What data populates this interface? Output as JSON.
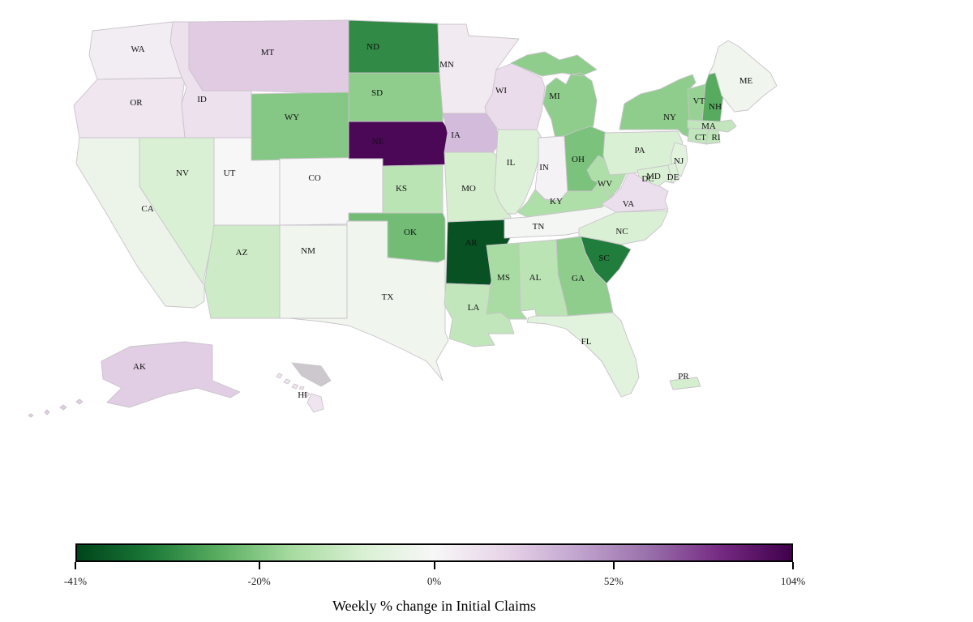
{
  "chart_data": {
    "type": "choropleth",
    "title": "Weekly % change in Initial Claims",
    "unit": "%",
    "colormap": "PRGn_r",
    "colormap_colors": [
      "#00441b",
      "#1b7837",
      "#5aae61",
      "#a6dba0",
      "#d9f0d3",
      "#f7f7f7",
      "#e7d4e8",
      "#c2a5cf",
      "#9970ab",
      "#762a83",
      "#40004b"
    ],
    "norm": {
      "vmin": -41,
      "vcenter": 0,
      "vmax": 104
    },
    "colorbar_ticks": [
      {
        "value": -41,
        "label": "-41%"
      },
      {
        "value": -20,
        "label": "-20%"
      },
      {
        "value": 0,
        "label": "0%"
      },
      {
        "value": 52,
        "label": "52%"
      },
      {
        "value": 104,
        "label": "104%"
      }
    ],
    "legend_position": "bottom",
    "states": [
      {
        "abbr": "WA",
        "value": 6
      },
      {
        "abbr": "OR",
        "value": 10
      },
      {
        "abbr": "CA",
        "value": -3
      },
      {
        "abbr": "ID",
        "value": 13
      },
      {
        "abbr": "NV",
        "value": -8
      },
      {
        "abbr": "UT",
        "value": 0
      },
      {
        "abbr": "AZ",
        "value": -10
      },
      {
        "abbr": "MT",
        "value": 25
      },
      {
        "abbr": "WY",
        "value": -20
      },
      {
        "abbr": "CO",
        "value": 0
      },
      {
        "abbr": "NM",
        "value": -2
      },
      {
        "abbr": "ND",
        "value": -30
      },
      {
        "abbr": "SD",
        "value": -19
      },
      {
        "abbr": "NE",
        "value": 100
      },
      {
        "abbr": "KS",
        "value": -13
      },
      {
        "abbr": "OK",
        "value": -22
      },
      {
        "abbr": "TX",
        "value": -2
      },
      {
        "abbr": "MN",
        "value": 8
      },
      {
        "abbr": "IA",
        "value": 32
      },
      {
        "abbr": "MO",
        "value": -9
      },
      {
        "abbr": "AR",
        "value": -39
      },
      {
        "abbr": "LA",
        "value": -12
      },
      {
        "abbr": "WI",
        "value": 16
      },
      {
        "abbr": "IL",
        "value": -7
      },
      {
        "abbr": "MS",
        "value": -16
      },
      {
        "abbr": "MI",
        "value": -19
      },
      {
        "abbr": "IN",
        "value": 3
      },
      {
        "abbr": "OH",
        "value": -21
      },
      {
        "abbr": "KY",
        "value": -15
      },
      {
        "abbr": "TN",
        "value": -1
      },
      {
        "abbr": "WV",
        "value": -15
      },
      {
        "abbr": "VA",
        "value": 14
      },
      {
        "abbr": "NC",
        "value": -8
      },
      {
        "abbr": "SC",
        "value": -32
      },
      {
        "abbr": "GA",
        "value": -19
      },
      {
        "abbr": "AL",
        "value": -13
      },
      {
        "abbr": "FL",
        "value": -6
      },
      {
        "abbr": "PA",
        "value": -8
      },
      {
        "abbr": "NY",
        "value": -19
      },
      {
        "abbr": "NJ",
        "value": -6
      },
      {
        "abbr": "VT",
        "value": -18
      },
      {
        "abbr": "NH",
        "value": -25
      },
      {
        "abbr": "ME",
        "value": -2
      },
      {
        "abbr": "MA",
        "value": -12
      },
      {
        "abbr": "CT",
        "value": -12
      },
      {
        "abbr": "RI",
        "value": -12
      },
      {
        "abbr": "MD",
        "value": -8
      },
      {
        "abbr": "DE",
        "value": -7
      },
      {
        "abbr": "DC",
        "value": null
      },
      {
        "abbr": "AK",
        "value": 24
      },
      {
        "abbr": "HI",
        "value": 11
      },
      {
        "abbr": "PR",
        "value": -9
      }
    ]
  }
}
